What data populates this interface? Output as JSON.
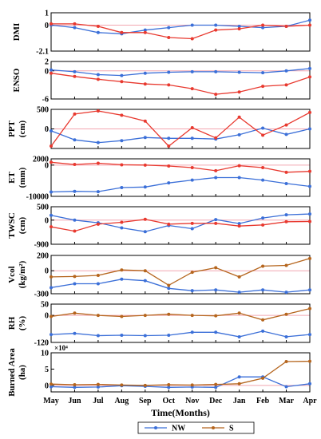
{
  "chart_data": {
    "type": "line",
    "x": [
      "May",
      "Jun",
      "Jul",
      "Aug",
      "Sep",
      "Oct",
      "Nov",
      "Dec",
      "Jan",
      "Feb",
      "Mar",
      "Apr"
    ],
    "xlabel": "Time(Months)",
    "legend": {
      "placement": "bottom-center",
      "entries": [
        "NW",
        "S"
      ]
    },
    "colors": {
      "NW": "#3b6fd8",
      "S_default": "#e8392f",
      "S_brown": "#b5651d",
      "zero_line": "#f2a6b0"
    },
    "panels": [
      {
        "ylabel": "DMI",
        "ylim": [
          -2.1,
          1
        ],
        "ticks": [
          1,
          0,
          -2.1
        ],
        "s_color": "red",
        "series": [
          {
            "name": "NW",
            "values": [
              0.0,
              -0.2,
              -0.6,
              -0.7,
              -0.4,
              -0.2,
              0.0,
              0.0,
              -0.1,
              -0.2,
              -0.1,
              0.4
            ]
          },
          {
            "name": "S",
            "values": [
              0.1,
              0.1,
              -0.1,
              -0.6,
              -0.6,
              -1.0,
              -1.1,
              -0.4,
              -0.3,
              0.0,
              -0.1,
              0.0
            ]
          }
        ]
      },
      {
        "ylabel": "ENSO",
        "ylim": [
          -6,
          2
        ],
        "ticks": [
          2,
          0,
          -6
        ],
        "s_color": "red",
        "series": [
          {
            "name": "NW",
            "values": [
              0.2,
              -0.2,
              -0.8,
              -1.0,
              -0.5,
              -0.3,
              -0.2,
              -0.2,
              -0.3,
              -0.4,
              0.0,
              0.5
            ]
          },
          {
            "name": "S",
            "values": [
              -0.5,
              -1.2,
              -1.8,
              -2.3,
              -2.8,
              -3.0,
              -3.8,
              -5.0,
              -4.5,
              -3.3,
              -3.0,
              -1.3
            ]
          }
        ]
      },
      {
        "ylabel": "PPT",
        "unit": "(cm)",
        "ylim": [
          -500,
          500
        ],
        "ticks": [
          500,
          0
        ],
        "s_color": "red",
        "series": [
          {
            "name": "NW",
            "values": [
              -50,
              -280,
              -350,
              -300,
              -220,
              -240,
              -240,
              -260,
              -150,
              20,
              -140,
              0
            ]
          },
          {
            "name": "S",
            "values": [
              -440,
              380,
              460,
              350,
              200,
              -440,
              30,
              -230,
              300,
              -160,
              100,
              420
            ]
          }
        ]
      },
      {
        "ylabel": "ET",
        "unit": "(mm)",
        "ylim": [
          -10000,
          2000
        ],
        "ticks": [
          2000,
          0,
          -10000
        ],
        "s_color": "red",
        "series": [
          {
            "name": "NW",
            "values": [
              -8600,
              -8400,
              -8500,
              -7200,
              -7000,
              -5700,
              -4800,
              -4000,
              -4000,
              -4800,
              -5900,
              -6800
            ]
          },
          {
            "name": "S",
            "values": [
              900,
              200,
              600,
              100,
              0,
              -300,
              -800,
              -1800,
              -200,
              -800,
              -2300,
              -2000
            ]
          }
        ]
      },
      {
        "ylabel": "TWSC",
        "unit": "(cm)",
        "ylim": [
          -900,
          500
        ],
        "ticks": [
          500,
          0,
          -900
        ],
        "s_color": "red",
        "series": [
          {
            "name": "NW",
            "values": [
              180,
              0,
              -100,
              -290,
              -430,
              -200,
              -320,
              20,
              -130,
              80,
              200,
              230
            ]
          },
          {
            "name": "S",
            "values": [
              -250,
              -410,
              -150,
              -80,
              30,
              -150,
              -120,
              -120,
              -220,
              -180,
              -60,
              -50
            ]
          }
        ]
      },
      {
        "ylabel": "Vcol",
        "unit": "(kg/m²)",
        "ylim": [
          -300,
          200
        ],
        "ticks": [
          200,
          0,
          -300
        ],
        "s_color": "brown",
        "series": [
          {
            "name": "NW",
            "values": [
              -220,
              -170,
              -170,
              -110,
              -130,
              -230,
              -260,
              -250,
              -280,
              -250,
              -280,
              -250
            ]
          },
          {
            "name": "S",
            "values": [
              -80,
              -75,
              -60,
              10,
              0,
              -190,
              -20,
              40,
              -80,
              60,
              70,
              160
            ]
          }
        ]
      },
      {
        "ylabel": "RH",
        "unit": "(%)",
        "ylim": [
          -120,
          50
        ],
        "ticks": [
          50,
          0,
          -120
        ],
        "s_color": "brown",
        "series": [
          {
            "name": "NW",
            "values": [
              -85,
              -80,
              -90,
              -88,
              -90,
              -88,
              -75,
              -75,
              -95,
              -70,
              -95,
              -85
            ]
          },
          {
            "name": "S",
            "values": [
              -5,
              10,
              0,
              -5,
              0,
              5,
              0,
              -2,
              10,
              -20,
              5,
              30
            ]
          }
        ]
      },
      {
        "ylabel": "Burned Area",
        "unit": "(ha)",
        "multiplier": "×10⁴",
        "ylim": [
          -2,
          10
        ],
        "ticks": [
          10,
          5,
          0
        ],
        "s_color": "brown",
        "series": [
          {
            "name": "NW",
            "values": [
              -0.4,
              -0.6,
              -0.5,
              -0.1,
              -0.3,
              -0.6,
              -0.5,
              -0.6,
              2.6,
              2.6,
              -0.4,
              0.5
            ]
          },
          {
            "name": "S",
            "values": [
              0.4,
              0.2,
              0.3,
              0.1,
              0.0,
              0.2,
              0.1,
              0.3,
              0.5,
              2.2,
              7.3,
              7.4
            ]
          }
        ]
      }
    ]
  }
}
